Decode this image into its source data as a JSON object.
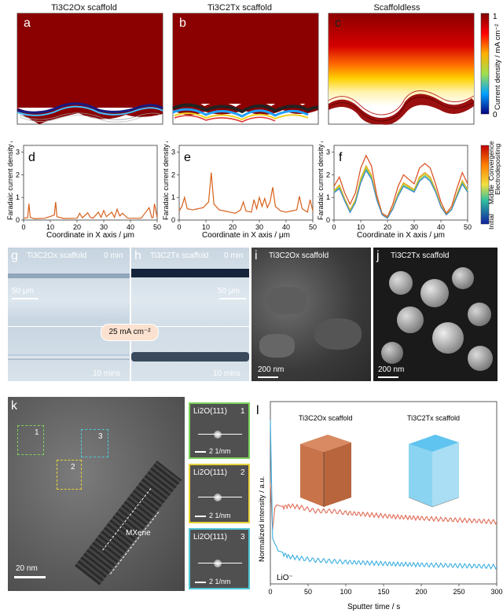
{
  "titles": {
    "a": "Ti3C2Ox scaffold",
    "b": "Ti3C2Tx scaffold",
    "c": "Scaffoldless"
  },
  "colorbar_top": {
    "label": "Current density / mA cm⁻²",
    "min": "0",
    "max": "1"
  },
  "colorbar_side": {
    "label": "Electrodepositing process",
    "top": "Convergence",
    "mid": "Middle",
    "bottom": "Initial"
  },
  "letters": {
    "a": "a",
    "b": "b",
    "c": "c",
    "d": "d",
    "e": "e",
    "f": "f",
    "g": "g",
    "h": "h",
    "i": "i",
    "j": "j",
    "k": "k",
    "l": "l"
  },
  "faradaic": {
    "ylabel": "Faradaic current density / mA cm⁻²",
    "xlabel": "Coordinate in X axis / μm",
    "xticks": [
      "0",
      "10",
      "20",
      "30",
      "40",
      "50"
    ],
    "yticks": [
      "0",
      "1",
      "2",
      "3"
    ]
  },
  "optical": {
    "g_title": "Ti3C2Ox scaffold",
    "h_title": "Ti3C2Tx scaffold",
    "t0": "0 min",
    "t10": "10 mins",
    "scale": "50 μm",
    "current": "25 mA cm⁻²"
  },
  "sem": {
    "i_title": "Ti3C2Ox scaffold",
    "j_title": "Ti3C2Tx scaffold",
    "scale": "200 nm"
  },
  "tem": {
    "scale": "20 nm",
    "mxene": "MXene",
    "boxes": [
      "1",
      "2",
      "3"
    ],
    "insets": [
      {
        "label": "Li2O(111)",
        "num": "1",
        "scale": "2 1/nm"
      },
      {
        "label": "Li2O(111)",
        "num": "2",
        "scale": "2 1/nm"
      },
      {
        "label": "Li2O(111)",
        "num": "3",
        "scale": "2 1/nm"
      }
    ]
  },
  "chart_data": [
    {
      "type": "line",
      "panel": "d",
      "xlabel": "Coordinate in X axis / μm",
      "ylabel": "Faradaic current density / mA cm⁻²",
      "xlim": [
        0,
        50
      ],
      "ylim": [
        0,
        3.3
      ],
      "series": [
        {
          "values_x": [
            0,
            1.5,
            2,
            2.5,
            4,
            8,
            11.5,
            12,
            12.5,
            15,
            20,
            21,
            22,
            24,
            25,
            26,
            28,
            29,
            30,
            31,
            33,
            34,
            35,
            36,
            37,
            39,
            44,
            47,
            48,
            48.5,
            49,
            50
          ],
          "values_y": [
            0.08,
            0.1,
            0.72,
            0.12,
            0.06,
            0.08,
            0.22,
            0.8,
            0.15,
            0.07,
            0.08,
            0.3,
            0.1,
            0.32,
            0.12,
            0.08,
            0.35,
            0.12,
            0.42,
            0.15,
            0.35,
            0.12,
            0.48,
            0.18,
            0.3,
            0.08,
            0.08,
            0.55,
            0.1,
            0.12,
            0.72,
            0.1
          ]
        }
      ]
    },
    {
      "type": "line",
      "panel": "e",
      "xlabel": "Coordinate in X axis / μm",
      "ylabel": "Faradaic current density / mA cm⁻²",
      "xlim": [
        0,
        50
      ],
      "ylim": [
        0,
        3.3
      ],
      "series": [
        {
          "values_x": [
            0,
            1,
            2,
            3,
            5,
            7,
            9,
            11,
            12,
            13,
            15,
            17,
            19,
            21,
            23,
            24,
            25,
            27,
            28,
            29,
            30,
            31,
            32,
            33,
            34,
            35,
            36,
            38,
            40,
            42,
            44,
            45,
            46,
            48,
            49,
            50
          ],
          "values_y": [
            0.4,
            0.6,
            1.0,
            0.5,
            0.45,
            0.5,
            0.55,
            0.8,
            2.1,
            0.7,
            0.45,
            0.4,
            0.35,
            0.3,
            0.45,
            0.8,
            0.4,
            0.35,
            0.9,
            0.5,
            1.0,
            0.6,
            0.95,
            0.55,
            0.8,
            1.45,
            0.6,
            0.4,
            0.35,
            0.4,
            0.45,
            1.05,
            0.5,
            0.35,
            0.9,
            0.4
          ]
        }
      ]
    },
    {
      "type": "line",
      "panel": "f",
      "xlabel": "Coordinate in X axis / μm",
      "ylabel": "Faradaic current density / mA cm⁻²",
      "xlim": [
        0,
        50
      ],
      "ylim": [
        0,
        3.3
      ],
      "series": [
        {
          "values_x": [
            0,
            2,
            4,
            6,
            8,
            10,
            12,
            14,
            16,
            18,
            20,
            22,
            24,
            26,
            28,
            30,
            32,
            34,
            36,
            38,
            40,
            42,
            44,
            46,
            48,
            50
          ],
          "values_y": [
            1.5,
            1.9,
            1.2,
            0.7,
            1.2,
            2.3,
            2.85,
            2.4,
            1.1,
            0.3,
            0.15,
            0.7,
            1.5,
            2.0,
            1.8,
            1.6,
            2.3,
            2.5,
            2.3,
            1.6,
            0.8,
            0.3,
            0.6,
            1.4,
            2.1,
            1.6
          ]
        },
        {
          "values_x": [
            0,
            2,
            4,
            6,
            8,
            10,
            12,
            14,
            16,
            18,
            20,
            22,
            24,
            26,
            28,
            30,
            32,
            34,
            36,
            38,
            40,
            42,
            44,
            46,
            48,
            50
          ],
          "values_y": [
            1.3,
            1.55,
            0.95,
            0.45,
            0.9,
            1.85,
            2.4,
            2.0,
            0.95,
            0.25,
            0.1,
            0.55,
            1.2,
            1.65,
            1.5,
            1.35,
            1.9,
            2.1,
            1.9,
            1.35,
            0.65,
            0.25,
            0.5,
            1.15,
            1.75,
            1.35
          ]
        }
      ]
    },
    {
      "type": "line",
      "panel": "l",
      "xlabel": "Sputter time / s",
      "ylabel": "Normalized intensity / a.u.",
      "xlim": [
        0,
        300
      ],
      "xticks": [
        "0",
        "50",
        "100",
        "150",
        "200",
        "250",
        "300"
      ],
      "annotation": "LiO⁻",
      "inset_titles": [
        "Ti3C2Ox scaffold",
        "Ti3C2Tx scaffold"
      ],
      "series": [
        {
          "name": "Ti3C2Ox scaffold",
          "color": "#e06a55",
          "values_x": [
            0,
            3,
            6,
            10,
            15,
            25,
            40,
            60,
            80,
            100,
            130,
            160,
            200,
            250,
            300
          ],
          "values_y": [
            0.55,
            0.3,
            0.42,
            0.44,
            0.42,
            0.43,
            0.42,
            0.4,
            0.4,
            0.39,
            0.38,
            0.37,
            0.36,
            0.35,
            0.34
          ]
        },
        {
          "name": "Ti3C2Tx scaffold",
          "color": "#3aaee0",
          "values_x": [
            0,
            3,
            6,
            10,
            15,
            25,
            40,
            60,
            80,
            100,
            130,
            160,
            200,
            250,
            300
          ],
          "values_y": [
            0.9,
            0.25,
            0.22,
            0.19,
            0.17,
            0.15,
            0.14,
            0.13,
            0.125,
            0.12,
            0.115,
            0.11,
            0.105,
            0.1,
            0.095
          ]
        }
      ]
    }
  ]
}
